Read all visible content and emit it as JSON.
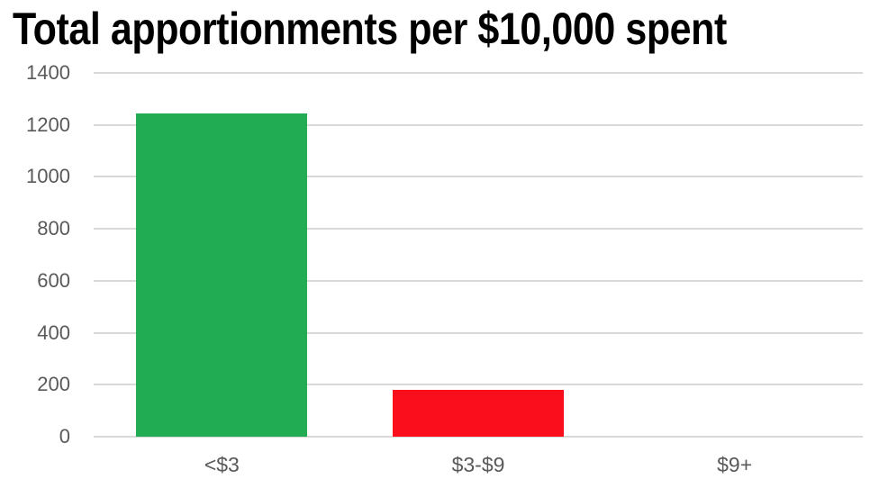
{
  "page": {
    "background": "#FFFFFF"
  },
  "chart_data": {
    "type": "bar",
    "title": "Total apportionments per $10,000 spent",
    "categories": [
      "<$3",
      "$3-$9",
      "$9+"
    ],
    "values": [
      1245,
      180,
      0
    ],
    "bar_colors": [
      "#21AC54",
      "#FA0E1C",
      null
    ],
    "xlabel": "",
    "ylabel": "",
    "yticks": [
      0,
      200,
      400,
      600,
      800,
      1000,
      1200,
      1400
    ],
    "ylim": [
      0,
      1400
    ],
    "grid": true,
    "legend": false,
    "styles": {
      "title_color": "#000000",
      "axis_label_color": "#595959",
      "gridline_color": "#D9D9D9"
    }
  }
}
